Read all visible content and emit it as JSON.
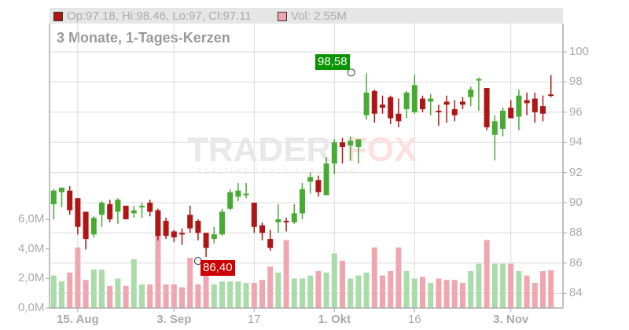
{
  "legend": {
    "ohlc_label": "Op:97.18, Hi:98.46, Lo:97, Cl:97.11",
    "ohlc_swatch_color": "#b01515",
    "volume_label": "Vol: 2.55M",
    "volume_swatch_color": "#f0a6b0"
  },
  "subtitle": "3 Monate, 1-Tages-Kerzen",
  "annotations": {
    "high_label": "98,58",
    "high_color": "#0a9400",
    "low_label": "86,40",
    "low_color": "#cc0000"
  },
  "colors": {
    "up": "#47ab33",
    "down": "#b01515",
    "vol_up": "#aadcaa",
    "vol_down": "#f0a6b0",
    "grid": "#d9d9d9",
    "axis": "#aaaaaa"
  },
  "chart_data": {
    "type": "candlestick",
    "title": "3 Monate, 1-Tages-Kerzen",
    "price_axis": {
      "position": "right",
      "ticks": [
        84,
        86,
        88,
        90,
        92,
        94,
        96,
        98,
        100
      ],
      "range": [
        82.8,
        101
      ]
    },
    "volume_axis": {
      "position": "left",
      "ticks": [
        "0,0M",
        "2,0M",
        "4,0M",
        "6,0M"
      ],
      "range": [
        0,
        17
      ]
    },
    "x_tick_labels": [
      {
        "label": "15. Aug",
        "index": 3,
        "bold": true
      },
      {
        "label": "3. Sep",
        "index": 15,
        "bold": true
      },
      {
        "label": "17",
        "index": 25,
        "bold": false
      },
      {
        "label": "1. Okt",
        "index": 35,
        "bold": true
      },
      {
        "label": "16",
        "index": 45,
        "bold": false
      },
      {
        "label": "3. Nov",
        "index": 57,
        "bold": true
      }
    ],
    "high_marker": {
      "index": 37,
      "value": 98.58
    },
    "low_marker": {
      "index": 18,
      "value": 86.4
    },
    "candles": [
      {
        "o": 89.9,
        "h": 90.9,
        "l": 88.9,
        "c": 90.8,
        "v": 2.2
      },
      {
        "o": 90.7,
        "h": 91.0,
        "l": 89.7,
        "c": 91.0,
        "v": 1.8
      },
      {
        "o": 90.8,
        "h": 91.1,
        "l": 89.2,
        "c": 89.5,
        "v": 2.4
      },
      {
        "o": 90.3,
        "h": 90.3,
        "l": 87.9,
        "c": 88.4,
        "v": 4.1
      },
      {
        "o": 89.4,
        "h": 89.4,
        "l": 86.9,
        "c": 87.6,
        "v": 1.9
      },
      {
        "o": 87.9,
        "h": 89.1,
        "l": 87.7,
        "c": 89.0,
        "v": 2.6
      },
      {
        "o": 89.2,
        "h": 90.1,
        "l": 88.4,
        "c": 90.0,
        "v": 2.6
      },
      {
        "o": 89.9,
        "h": 90.2,
        "l": 88.7,
        "c": 88.9,
        "v": 1.5
      },
      {
        "o": 89.4,
        "h": 90.3,
        "l": 88.6,
        "c": 90.2,
        "v": 2.0
      },
      {
        "o": 89.8,
        "h": 89.8,
        "l": 88.9,
        "c": 88.9,
        "v": 1.5
      },
      {
        "o": 89.3,
        "h": 89.8,
        "l": 89.0,
        "c": 89.5,
        "v": 3.3
      },
      {
        "o": 89.7,
        "h": 90.0,
        "l": 89.0,
        "c": 89.8,
        "v": 1.6
      },
      {
        "o": 90.0,
        "h": 90.2,
        "l": 89.1,
        "c": 89.4,
        "v": 1.6
      },
      {
        "o": 89.5,
        "h": 89.6,
        "l": 87.5,
        "c": 87.8,
        "v": 5.0
      },
      {
        "o": 88.8,
        "h": 89.0,
        "l": 87.6,
        "c": 87.8,
        "v": 1.6
      },
      {
        "o": 88.1,
        "h": 88.2,
        "l": 87.4,
        "c": 87.7,
        "v": 1.6
      },
      {
        "o": 88.0,
        "h": 88.3,
        "l": 87.2,
        "c": 87.9,
        "v": 1.4
      },
      {
        "o": 89.2,
        "h": 89.8,
        "l": 88.0,
        "c": 88.3,
        "v": 3.4
      },
      {
        "o": 88.8,
        "h": 88.9,
        "l": 87.5,
        "c": 88.0,
        "v": 1.6
      },
      {
        "o": 88.0,
        "h": 88.0,
        "l": 86.4,
        "c": 87.0,
        "v": 2.7
      },
      {
        "o": 87.6,
        "h": 88.4,
        "l": 87.3,
        "c": 87.9,
        "v": 1.6
      },
      {
        "o": 87.9,
        "h": 89.6,
        "l": 87.8,
        "c": 89.4,
        "v": 1.8
      },
      {
        "o": 89.6,
        "h": 90.9,
        "l": 89.5,
        "c": 90.7,
        "v": 1.8
      },
      {
        "o": 90.4,
        "h": 91.3,
        "l": 90.1,
        "c": 90.8,
        "v": 1.8
      },
      {
        "o": 90.6,
        "h": 91.3,
        "l": 90.3,
        "c": 90.6,
        "v": 1.7
      },
      {
        "o": 90.0,
        "h": 90.0,
        "l": 88.0,
        "c": 88.4,
        "v": 1.7
      },
      {
        "o": 88.5,
        "h": 88.7,
        "l": 87.5,
        "c": 88.0,
        "v": 1.9
      },
      {
        "o": 87.6,
        "h": 88.2,
        "l": 86.8,
        "c": 87.0,
        "v": 2.8
      },
      {
        "o": 88.7,
        "h": 89.9,
        "l": 88.0,
        "c": 88.9,
        "v": 2.4
      },
      {
        "o": 88.8,
        "h": 89.0,
        "l": 88.1,
        "c": 88.7,
        "v": 4.6
      },
      {
        "o": 88.7,
        "h": 89.9,
        "l": 88.6,
        "c": 89.3,
        "v": 2.0
      },
      {
        "o": 89.3,
        "h": 91.3,
        "l": 88.9,
        "c": 90.9,
        "v": 2.0
      },
      {
        "o": 91.4,
        "h": 92.0,
        "l": 90.6,
        "c": 91.7,
        "v": 2.2
      },
      {
        "o": 91.5,
        "h": 91.8,
        "l": 90.4,
        "c": 90.7,
        "v": 2.5
      },
      {
        "o": 90.5,
        "h": 93.0,
        "l": 90.5,
        "c": 92.6,
        "v": 2.4
      },
      {
        "o": 92.6,
        "h": 94.2,
        "l": 91.9,
        "c": 94.0,
        "v": 3.7
      },
      {
        "o": 94.0,
        "h": 94.3,
        "l": 92.6,
        "c": 93.7,
        "v": 3.2
      },
      {
        "o": 93.8,
        "h": 94.4,
        "l": 92.8,
        "c": 94.1,
        "v": 2.0
      },
      {
        "o": 93.7,
        "h": 94.2,
        "l": 92.6,
        "c": 94.2,
        "v": 2.2
      },
      {
        "o": 95.8,
        "h": 98.58,
        "l": 95.5,
        "c": 97.3,
        "v": 2.4
      },
      {
        "o": 97.4,
        "h": 97.5,
        "l": 95.3,
        "c": 95.9,
        "v": 4.1
      },
      {
        "o": 96.5,
        "h": 97.1,
        "l": 95.9,
        "c": 96.3,
        "v": 2.2
      },
      {
        "o": 97.0,
        "h": 97.1,
        "l": 95.2,
        "c": 95.6,
        "v": 2.5
      },
      {
        "o": 95.9,
        "h": 96.9,
        "l": 95.0,
        "c": 95.4,
        "v": 4.1
      },
      {
        "o": 96.2,
        "h": 97.4,
        "l": 95.6,
        "c": 97.3,
        "v": 2.5
      },
      {
        "o": 96.0,
        "h": 98.5,
        "l": 95.9,
        "c": 97.8,
        "v": 2.0
      },
      {
        "o": 96.9,
        "h": 97.1,
        "l": 96.0,
        "c": 96.2,
        "v": 2.1
      },
      {
        "o": 96.7,
        "h": 97.2,
        "l": 95.8,
        "c": 96.9,
        "v": 1.7
      },
      {
        "o": 96.1,
        "h": 96.5,
        "l": 95.1,
        "c": 96.0,
        "v": 2.0
      },
      {
        "o": 96.7,
        "h": 97.1,
        "l": 95.3,
        "c": 96.5,
        "v": 1.9
      },
      {
        "o": 96.2,
        "h": 96.8,
        "l": 95.4,
        "c": 95.8,
        "v": 1.9
      },
      {
        "o": 96.7,
        "h": 97.0,
        "l": 96.2,
        "c": 96.5,
        "v": 1.7
      },
      {
        "o": 97.0,
        "h": 97.7,
        "l": 96.4,
        "c": 97.5,
        "v": 2.5
      },
      {
        "o": 98.1,
        "h": 98.3,
        "l": 96.1,
        "c": 98.2,
        "v": 3.0
      },
      {
        "o": 97.6,
        "h": 97.6,
        "l": 94.8,
        "c": 95.0,
        "v": 4.6
      },
      {
        "o": 94.5,
        "h": 95.8,
        "l": 92.8,
        "c": 95.4,
        "v": 3.0
      },
      {
        "o": 94.9,
        "h": 96.3,
        "l": 94.4,
        "c": 96.1,
        "v": 3.0
      },
      {
        "o": 96.3,
        "h": 96.8,
        "l": 95.6,
        "c": 95.6,
        "v": 3.0
      },
      {
        "o": 95.7,
        "h": 97.5,
        "l": 94.8,
        "c": 97.1,
        "v": 2.5
      },
      {
        "o": 96.8,
        "h": 97.3,
        "l": 95.8,
        "c": 96.6,
        "v": 2.2
      },
      {
        "o": 96.9,
        "h": 97.3,
        "l": 95.3,
        "c": 96.0,
        "v": 1.7
      },
      {
        "o": 96.4,
        "h": 97.1,
        "l": 95.4,
        "c": 95.9,
        "v": 2.5
      },
      {
        "o": 97.18,
        "h": 98.46,
        "l": 97.0,
        "c": 97.11,
        "v": 2.55
      }
    ]
  }
}
